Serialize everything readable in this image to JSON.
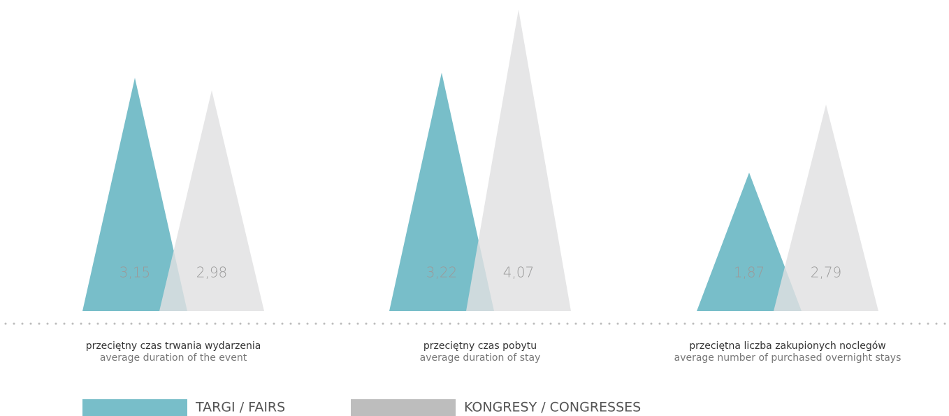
{
  "chart_data": {
    "type": "triangle",
    "categories": [
      "przeciętny czas trwania wydarzenia",
      "przeciętny czas pobytu",
      "przeciętna liczba zakupionych noclegów"
    ],
    "category_subtitles": [
      "average duration of the event",
      "average duration of stay",
      "average number of purchased overnight stays"
    ],
    "series": [
      {
        "name": "TARGI / FAIRS",
        "color": "#78bec9",
        "values": [
          3.15,
          3.22,
          1.87
        ],
        "value_labels": [
          "3,15",
          "3,22",
          "1,87"
        ]
      },
      {
        "name": "KONGRESY / CONGRESSES",
        "color": "#e0e1e2",
        "values": [
          2.98,
          4.07,
          2.79
        ],
        "value_labels": [
          "2,98",
          "4,07",
          "2,79"
        ]
      }
    ],
    "ylim": [
      0,
      4.2
    ],
    "legend": "bottom"
  }
}
